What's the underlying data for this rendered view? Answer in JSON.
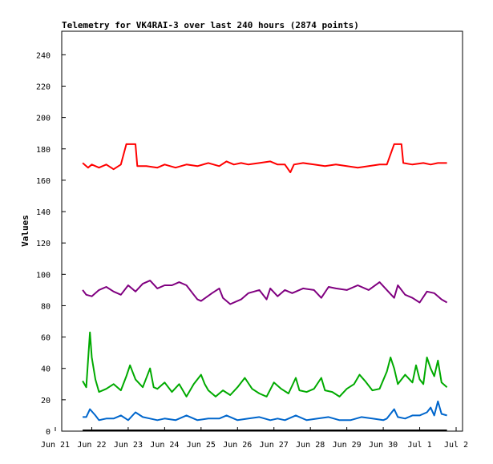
{
  "chart_data": {
    "type": "line",
    "title": "Telemetry for VK4RAI-3 over last 240 hours (2874 points)",
    "xlabel": "",
    "ylabel": "Values",
    "ylim": [
      0,
      255
    ],
    "y_ticks": [
      "0",
      "20",
      "40",
      "60",
      "80",
      "100",
      "120",
      "140",
      "160",
      "180",
      "200",
      "220",
      "240"
    ],
    "x_ticks": [
      "Jun 21",
      "Jun 22",
      "Jun 23",
      "Jun 24",
      "Jun 25",
      "Jun 26",
      "Jun 27",
      "Jun 28",
      "Jun 29",
      "Jun 30",
      "Jul 1",
      "Jul 2"
    ],
    "x_range_days": [
      0,
      11
    ],
    "grid": false,
    "series": [
      {
        "color": "#ff0000",
        "points": [
          [
            0.75,
            171
          ],
          [
            0.9,
            168
          ],
          [
            1.0,
            170
          ],
          [
            1.2,
            168
          ],
          [
            1.4,
            170
          ],
          [
            1.6,
            167
          ],
          [
            1.8,
            170
          ],
          [
            1.95,
            183
          ],
          [
            2.2,
            183
          ],
          [
            2.25,
            169
          ],
          [
            2.5,
            169
          ],
          [
            2.8,
            168
          ],
          [
            3.0,
            170
          ],
          [
            3.3,
            168
          ],
          [
            3.6,
            170
          ],
          [
            3.9,
            169
          ],
          [
            4.2,
            171
          ],
          [
            4.5,
            169
          ],
          [
            4.7,
            172
          ],
          [
            4.9,
            170
          ],
          [
            5.1,
            171
          ],
          [
            5.3,
            170
          ],
          [
            5.6,
            171
          ],
          [
            5.9,
            172
          ],
          [
            6.1,
            170
          ],
          [
            6.3,
            170
          ],
          [
            6.45,
            165
          ],
          [
            6.55,
            170
          ],
          [
            6.8,
            171
          ],
          [
            7.1,
            170
          ],
          [
            7.4,
            169
          ],
          [
            7.7,
            170
          ],
          [
            8.0,
            169
          ],
          [
            8.3,
            168
          ],
          [
            8.6,
            169
          ],
          [
            8.9,
            170
          ],
          [
            9.1,
            170
          ],
          [
            9.3,
            183
          ],
          [
            9.5,
            183
          ],
          [
            9.55,
            171
          ],
          [
            9.8,
            170
          ],
          [
            10.1,
            171
          ],
          [
            10.3,
            170
          ],
          [
            10.5,
            171
          ],
          [
            10.75,
            171
          ]
        ]
      },
      {
        "color": "#800080",
        "points": [
          [
            0.75,
            90
          ],
          [
            0.85,
            87
          ],
          [
            1.0,
            86
          ],
          [
            1.2,
            90
          ],
          [
            1.4,
            92
          ],
          [
            1.6,
            89
          ],
          [
            1.8,
            87
          ],
          [
            2.0,
            93
          ],
          [
            2.2,
            89
          ],
          [
            2.4,
            94
          ],
          [
            2.6,
            96
          ],
          [
            2.8,
            91
          ],
          [
            3.0,
            93
          ],
          [
            3.2,
            93
          ],
          [
            3.4,
            95
          ],
          [
            3.6,
            93
          ],
          [
            3.8,
            87
          ],
          [
            3.9,
            84
          ],
          [
            4.0,
            83
          ],
          [
            4.3,
            88
          ],
          [
            4.5,
            91
          ],
          [
            4.6,
            85
          ],
          [
            4.8,
            81
          ],
          [
            5.1,
            84
          ],
          [
            5.3,
            88
          ],
          [
            5.6,
            90
          ],
          [
            5.8,
            84
          ],
          [
            5.9,
            91
          ],
          [
            6.1,
            86
          ],
          [
            6.3,
            90
          ],
          [
            6.5,
            88
          ],
          [
            6.8,
            91
          ],
          [
            7.1,
            90
          ],
          [
            7.3,
            85
          ],
          [
            7.5,
            92
          ],
          [
            7.7,
            91
          ],
          [
            8.0,
            90
          ],
          [
            8.3,
            93
          ],
          [
            8.6,
            90
          ],
          [
            8.9,
            95
          ],
          [
            9.1,
            90
          ],
          [
            9.3,
            85
          ],
          [
            9.4,
            93
          ],
          [
            9.6,
            87
          ],
          [
            9.8,
            85
          ],
          [
            10.0,
            82
          ],
          [
            10.2,
            89
          ],
          [
            10.4,
            88
          ],
          [
            10.6,
            84
          ],
          [
            10.75,
            82
          ]
        ]
      },
      {
        "color": "#00aa00",
        "points": [
          [
            0.75,
            32
          ],
          [
            0.85,
            28
          ],
          [
            0.95,
            63
          ],
          [
            1.0,
            47
          ],
          [
            1.1,
            33
          ],
          [
            1.2,
            25
          ],
          [
            1.4,
            27
          ],
          [
            1.6,
            30
          ],
          [
            1.8,
            26
          ],
          [
            1.95,
            35
          ],
          [
            2.05,
            42
          ],
          [
            2.2,
            33
          ],
          [
            2.4,
            28
          ],
          [
            2.6,
            40
          ],
          [
            2.7,
            28
          ],
          [
            2.8,
            27
          ],
          [
            3.0,
            31
          ],
          [
            3.2,
            25
          ],
          [
            3.4,
            30
          ],
          [
            3.6,
            22
          ],
          [
            3.8,
            30
          ],
          [
            4.0,
            36
          ],
          [
            4.1,
            30
          ],
          [
            4.2,
            26
          ],
          [
            4.4,
            22
          ],
          [
            4.6,
            26
          ],
          [
            4.8,
            23
          ],
          [
            5.0,
            28
          ],
          [
            5.2,
            34
          ],
          [
            5.4,
            27
          ],
          [
            5.6,
            24
          ],
          [
            5.8,
            22
          ],
          [
            6.0,
            31
          ],
          [
            6.2,
            27
          ],
          [
            6.4,
            24
          ],
          [
            6.6,
            34
          ],
          [
            6.7,
            26
          ],
          [
            6.9,
            25
          ],
          [
            7.1,
            27
          ],
          [
            7.3,
            34
          ],
          [
            7.4,
            26
          ],
          [
            7.6,
            25
          ],
          [
            7.8,
            22
          ],
          [
            8.0,
            27
          ],
          [
            8.2,
            30
          ],
          [
            8.35,
            36
          ],
          [
            8.5,
            32
          ],
          [
            8.7,
            26
          ],
          [
            8.9,
            27
          ],
          [
            9.1,
            38
          ],
          [
            9.2,
            47
          ],
          [
            9.3,
            40
          ],
          [
            9.4,
            30
          ],
          [
            9.6,
            36
          ],
          [
            9.8,
            31
          ],
          [
            9.9,
            42
          ],
          [
            10.0,
            33
          ],
          [
            10.1,
            30
          ],
          [
            10.2,
            47
          ],
          [
            10.3,
            40
          ],
          [
            10.4,
            35
          ],
          [
            10.5,
            45
          ],
          [
            10.6,
            31
          ],
          [
            10.75,
            28
          ]
        ]
      },
      {
        "color": "#0066cc",
        "points": [
          [
            0.75,
            9
          ],
          [
            0.85,
            9
          ],
          [
            0.95,
            14
          ],
          [
            1.1,
            10
          ],
          [
            1.2,
            7
          ],
          [
            1.4,
            8
          ],
          [
            1.6,
            8
          ],
          [
            1.8,
            10
          ],
          [
            2.0,
            7
          ],
          [
            2.2,
            12
          ],
          [
            2.4,
            9
          ],
          [
            2.6,
            8
          ],
          [
            2.8,
            7
          ],
          [
            3.0,
            8
          ],
          [
            3.3,
            7
          ],
          [
            3.6,
            10
          ],
          [
            3.9,
            7
          ],
          [
            4.2,
            8
          ],
          [
            4.5,
            8
          ],
          [
            4.7,
            10
          ],
          [
            5.0,
            7
          ],
          [
            5.3,
            8
          ],
          [
            5.6,
            9
          ],
          [
            5.9,
            7
          ],
          [
            6.1,
            8
          ],
          [
            6.3,
            7
          ],
          [
            6.6,
            10
          ],
          [
            6.9,
            7
          ],
          [
            7.2,
            8
          ],
          [
            7.5,
            9
          ],
          [
            7.8,
            7
          ],
          [
            8.1,
            7
          ],
          [
            8.4,
            9
          ],
          [
            8.7,
            8
          ],
          [
            9.0,
            7
          ],
          [
            9.1,
            8
          ],
          [
            9.3,
            14
          ],
          [
            9.4,
            9
          ],
          [
            9.6,
            8
          ],
          [
            9.8,
            10
          ],
          [
            10.0,
            10
          ],
          [
            10.2,
            12
          ],
          [
            10.3,
            15
          ],
          [
            10.4,
            10
          ],
          [
            10.5,
            19
          ],
          [
            10.6,
            11
          ],
          [
            10.75,
            10
          ]
        ]
      },
      {
        "color": "#000000",
        "points": [
          [
            0.75,
            0.5
          ],
          [
            10.75,
            0.5
          ]
        ]
      }
    ]
  }
}
